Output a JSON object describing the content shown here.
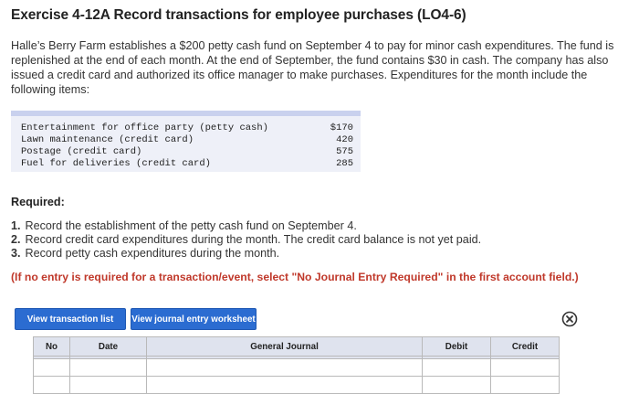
{
  "title": "Exercise 4-12A Record transactions for employee purchases (LO4-6)",
  "intro": "Halle’s Berry Farm establishes a $200 petty cash fund on September 4 to pay for minor cash expenditures. The fund is replenished at the end of each month. At the end of September, the fund contains $30 in cash. The company has also issued a credit card and authorized its office manager to make purchases. Expenditures for the month include the following items:",
  "expenditures": [
    {
      "description": "Entertainment for office party (petty cash)",
      "amount": "$170"
    },
    {
      "description": "Lawn maintenance (credit card)",
      "amount": "420"
    },
    {
      "description": "Postage (credit card)",
      "amount": "575"
    },
    {
      "description": "Fuel for deliveries (credit card)",
      "amount": "285"
    }
  ],
  "required_label": "Required:",
  "requirements": [
    {
      "num": "1.",
      "text": "Record the establishment of the petty cash fund on September 4."
    },
    {
      "num": "2.",
      "text": "Record credit card expenditures during the month. The credit card balance is not yet paid."
    },
    {
      "num": "3.",
      "text": "Record petty cash expenditures during the month."
    }
  ],
  "note": "(If no entry is required for a transaction/event, select \"No Journal Entry Required\" in the first account field.)",
  "buttons": {
    "view_transaction_list": "View transaction list",
    "view_journal_worksheet": "View journal entry worksheet"
  },
  "journal": {
    "headers": {
      "no": "No",
      "date": "Date",
      "account": "General Journal",
      "debit": "Debit",
      "credit": "Credit"
    }
  },
  "icons": {
    "close": "close-circle-icon"
  },
  "colors": {
    "button": "#2b6cd1",
    "note": "#c0392b",
    "header_bg": "#dfe3ee",
    "expenditure_bg": "#eef0f8"
  }
}
